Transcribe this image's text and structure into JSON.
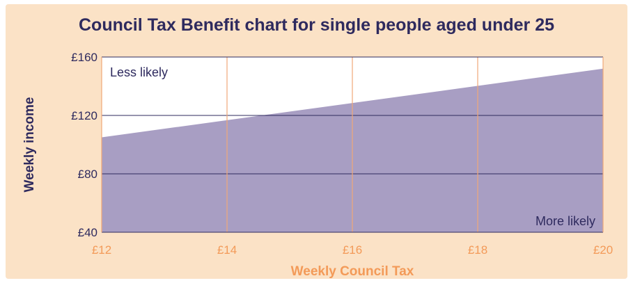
{
  "colors": {
    "background": "#fbe2c6",
    "plot_background": "#ffffff",
    "area_fill": "#a89ec3",
    "horizontal_grid": "#2e2a5e",
    "vertical_grid": "#f0a878",
    "title_text": "#2e2a5e",
    "y_axis_text": "#2e2a5e",
    "x_axis_text": "#f39a58"
  },
  "chart_data": {
    "type": "area",
    "title": "Council Tax Benefit chart for single people aged under 25",
    "xlabel": "Weekly Council Tax",
    "ylabel": "Weekly income",
    "x_ticks": [
      "£12",
      "£14",
      "£16",
      "£18",
      "£20"
    ],
    "y_ticks": [
      "£160",
      "£120",
      "£80",
      "£40"
    ],
    "xlim": [
      12,
      20
    ],
    "ylim": [
      40,
      160
    ],
    "grid": true,
    "series": [
      {
        "x": [
          12,
          20
        ],
        "y": [
          105,
          152
        ]
      }
    ],
    "annotations": {
      "above": "Less likely",
      "below": "More likely"
    }
  }
}
